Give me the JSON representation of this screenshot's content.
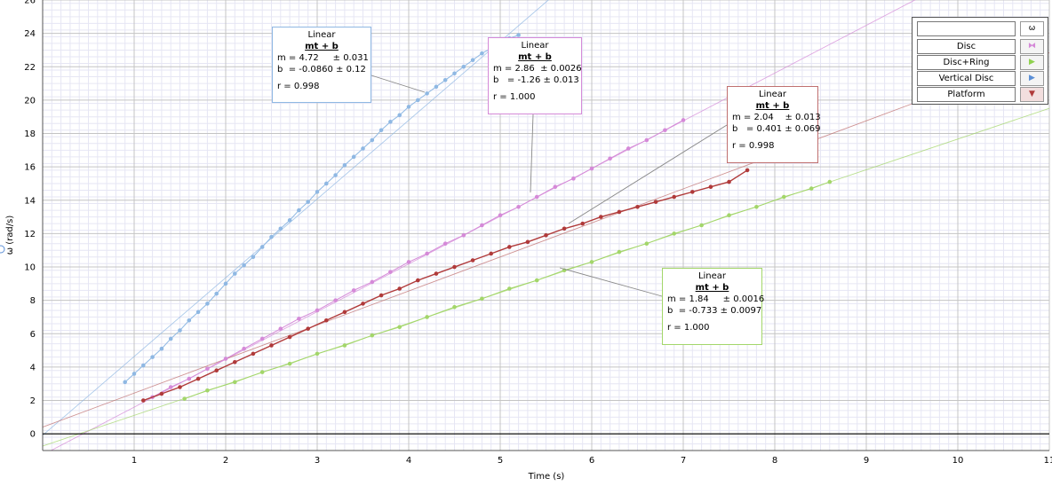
{
  "chart_data": {
    "type": "scatter",
    "xlabel": "Time (s)",
    "ylabel": "ω (rad/s)",
    "xlim": [
      0,
      11
    ],
    "ylim": [
      -1,
      26
    ],
    "xticks": [
      1,
      2,
      3,
      4,
      5,
      6,
      7,
      8,
      9,
      10,
      11
    ],
    "yticks": [
      0,
      2,
      4,
      6,
      8,
      10,
      12,
      14,
      16,
      18,
      20,
      22,
      24,
      26
    ],
    "grid": true,
    "legend": {
      "position": "top-right",
      "header": "ω",
      "entries": [
        {
          "name": "Disc",
          "color": "#d58ad8",
          "symbol": "⧓"
        },
        {
          "name": "Disc+Ring",
          "color": "#8fd14f",
          "symbol": "▶"
        },
        {
          "name": "Vertical Disc",
          "color": "#5b8fd6",
          "symbol": "▶"
        },
        {
          "name": "Platform",
          "color": "#b03a3a",
          "symbol": "▼"
        }
      ]
    },
    "series": [
      {
        "name": "Vertical Disc",
        "color": "#8fb8e3",
        "x": [
          0.9,
          1.0,
          1.1,
          1.2,
          1.3,
          1.4,
          1.5,
          1.6,
          1.7,
          1.8,
          1.9,
          2.0,
          2.1,
          2.2,
          2.3,
          2.4,
          2.5,
          2.6,
          2.7,
          2.8,
          2.9,
          3.0,
          3.1,
          3.2,
          3.3,
          3.4,
          3.5,
          3.6,
          3.7,
          3.8,
          3.9,
          4.0,
          4.1,
          4.2,
          4.3,
          4.4,
          4.5,
          4.6,
          4.7,
          4.8,
          4.9,
          5.0,
          5.1,
          5.2
        ],
        "y": [
          3.1,
          3.6,
          4.1,
          4.6,
          5.1,
          5.7,
          6.2,
          6.8,
          7.3,
          7.8,
          8.4,
          9.0,
          9.6,
          10.1,
          10.6,
          11.2,
          11.8,
          12.3,
          12.8,
          13.4,
          13.9,
          14.5,
          15.0,
          15.5,
          16.1,
          16.6,
          17.1,
          17.6,
          18.2,
          18.7,
          19.1,
          19.6,
          20.0,
          20.4,
          20.8,
          21.2,
          21.6,
          22.0,
          22.4,
          22.8,
          23.1,
          23.4,
          23.7,
          23.9
        ]
      },
      {
        "name": "Disc",
        "color": "#d58ad8",
        "x": [
          1.2,
          1.4,
          1.6,
          1.8,
          2.0,
          2.2,
          2.4,
          2.6,
          2.8,
          3.0,
          3.2,
          3.4,
          3.6,
          3.8,
          4.0,
          4.2,
          4.4,
          4.6,
          4.8,
          5.0,
          5.2,
          5.4,
          5.6,
          5.8,
          6.0,
          6.2,
          6.4,
          6.6,
          6.8,
          7.0
        ],
        "y": [
          2.2,
          2.8,
          3.3,
          3.9,
          4.5,
          5.1,
          5.7,
          6.3,
          6.9,
          7.4,
          8.0,
          8.6,
          9.1,
          9.7,
          10.3,
          10.8,
          11.4,
          11.9,
          12.5,
          13.1,
          13.6,
          14.2,
          14.8,
          15.3,
          15.9,
          16.5,
          17.1,
          17.6,
          18.2,
          18.8
        ]
      },
      {
        "name": "Platform",
        "color": "#b03a3a",
        "x": [
          1.1,
          1.3,
          1.5,
          1.7,
          1.9,
          2.1,
          2.3,
          2.5,
          2.7,
          2.9,
          3.1,
          3.3,
          3.5,
          3.7,
          3.9,
          4.1,
          4.3,
          4.5,
          4.7,
          4.9,
          5.1,
          5.3,
          5.5,
          5.7,
          5.9,
          6.1,
          6.3,
          6.5,
          6.7,
          6.9,
          7.1,
          7.3,
          7.5,
          7.7
        ],
        "y": [
          2.0,
          2.4,
          2.8,
          3.3,
          3.8,
          4.3,
          4.8,
          5.3,
          5.8,
          6.3,
          6.8,
          7.3,
          7.8,
          8.3,
          8.7,
          9.2,
          9.6,
          10.0,
          10.4,
          10.8,
          11.2,
          11.5,
          11.9,
          12.3,
          12.6,
          13.0,
          13.3,
          13.6,
          13.9,
          14.2,
          14.5,
          14.8,
          15.1,
          15.8
        ]
      },
      {
        "name": "Disc+Ring",
        "color": "#a3d66a",
        "x": [
          1.55,
          1.8,
          2.1,
          2.4,
          2.7,
          3.0,
          3.3,
          3.6,
          3.9,
          4.2,
          4.5,
          4.8,
          5.1,
          5.4,
          5.7,
          6.0,
          6.3,
          6.6,
          6.9,
          7.2,
          7.5,
          7.8,
          8.1,
          8.4,
          8.6
        ],
        "y": [
          2.1,
          2.6,
          3.1,
          3.7,
          4.2,
          4.8,
          5.3,
          5.9,
          6.4,
          7.0,
          7.6,
          8.1,
          8.7,
          9.2,
          9.8,
          10.3,
          10.9,
          11.4,
          12.0,
          12.5,
          13.1,
          13.6,
          14.2,
          14.7,
          15.1
        ]
      }
    ],
    "fits": [
      {
        "series": "Vertical Disc",
        "title": "Linear",
        "equation": "mt + b",
        "m": "m = 4.72     ± 0.031",
        "b": "b  = -0.0860 ± 0.12",
        "r": "r = 0.998",
        "slope": 4.72,
        "intercept": -0.086,
        "border": "#8fb8e3"
      },
      {
        "series": "Disc",
        "title": "Linear",
        "equation": "mt + b",
        "m": "m = 2.86  ± 0.0026",
        "b": "b   = -1.26 ± 0.013",
        "r": "r = 1.000",
        "slope": 2.86,
        "intercept": -1.26,
        "border": "#d58ad8"
      },
      {
        "series": "Platform",
        "title": "Linear",
        "equation": "mt + b",
        "m": "m = 2.04    ± 0.013",
        "b": "b   = 0.401 ± 0.069",
        "r": "r = 0.998",
        "slope": 2.04,
        "intercept": 0.401,
        "border": "#c07070"
      },
      {
        "series": "Disc+Ring",
        "title": "Linear",
        "equation": "mt + b",
        "m": "m = 1.84     ± 0.0016",
        "b": "b  = -0.733 ± 0.0097",
        "r": "r = 1.000",
        "slope": 1.84,
        "intercept": -0.733,
        "border": "#a3d66a"
      }
    ]
  }
}
